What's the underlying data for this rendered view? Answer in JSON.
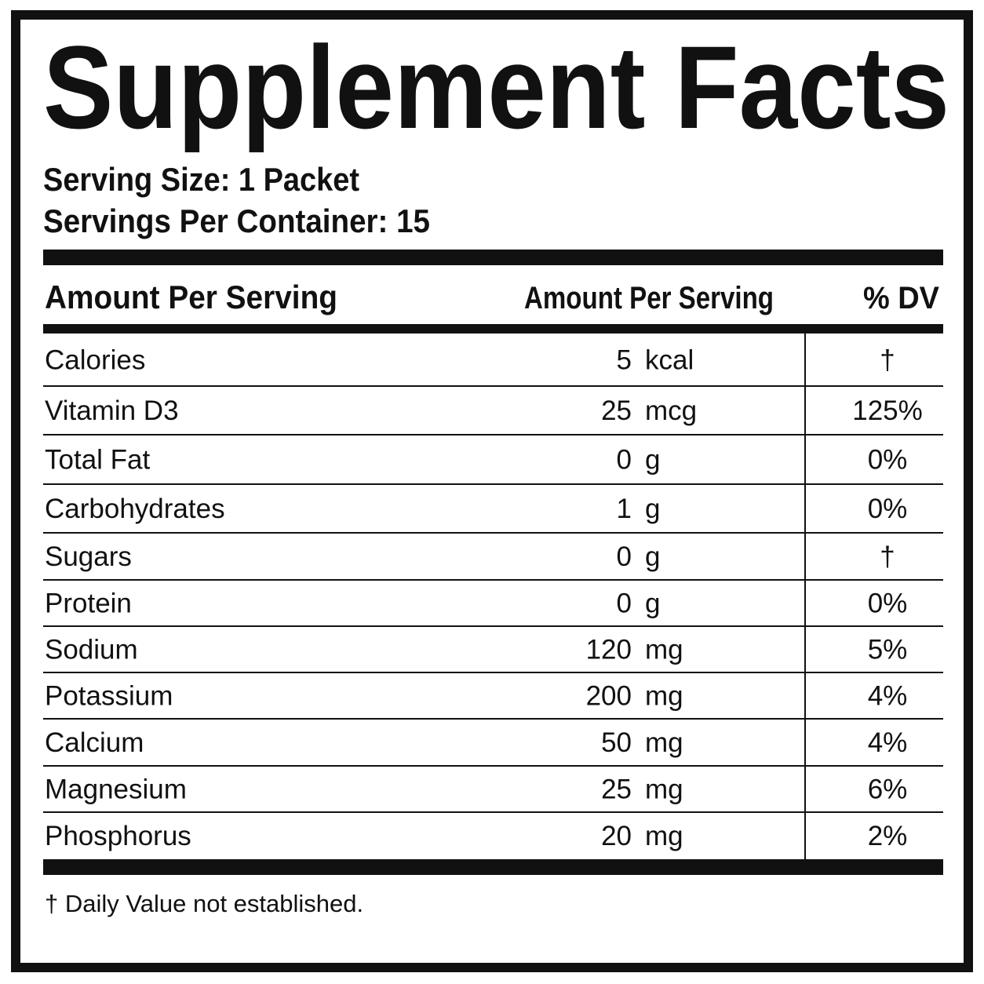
{
  "title": "Supplement Facts",
  "serving_size": "Serving Size: 1 Packet",
  "servings_per_container": "Servings Per Container: 15",
  "table": {
    "header": [
      "Amount Per Serving",
      "Amount Per Serving",
      "% DV"
    ],
    "rows": [
      {
        "name": "Calories",
        "amount": 5,
        "unit": "kcal",
        "dv": "†"
      },
      {
        "name": "Vitamin D3",
        "amount": 25,
        "unit": "mcg",
        "dv": "125%"
      },
      {
        "name": "Total Fat",
        "amount": 0,
        "unit": "g",
        "dv": "0%"
      },
      {
        "name": "Carbohydrates",
        "amount": 1,
        "unit": "g",
        "dv": "0%"
      },
      {
        "name": "Sugars",
        "amount": 0,
        "unit": "g",
        "dv": "†"
      },
      {
        "name": "Protein",
        "amount": 0,
        "unit": "g",
        "dv": "0%"
      },
      {
        "name": "Sodium",
        "amount": 120,
        "unit": "mg",
        "dv": "5%"
      },
      {
        "name": "Potassium",
        "amount": 200,
        "unit": "mg",
        "dv": "4%"
      },
      {
        "name": "Calcium",
        "amount": 50,
        "unit": "mg",
        "dv": "4%"
      },
      {
        "name": "Magnesium",
        "amount": 25,
        "unit": "mg",
        "dv": "6%"
      },
      {
        "name": "Phosphorus",
        "amount": 20,
        "unit": "mg",
        "dv": "2%"
      }
    ]
  },
  "footnote": "† Daily Value not established."
}
